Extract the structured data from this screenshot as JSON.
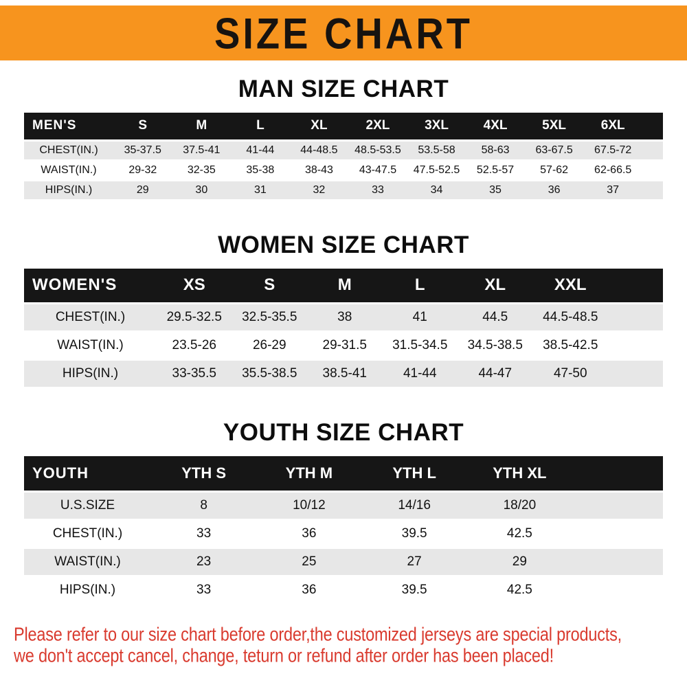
{
  "banner": {
    "title": "SIZE CHART"
  },
  "colors": {
    "banner_bg": "#f7941e",
    "table_header_bg": "#161616",
    "row_alt_bg": "#e7e7e7",
    "footer_text": "#d93a2e"
  },
  "sections": [
    {
      "id": "men",
      "heading": "MAN SIZE CHART",
      "header_label": "MEN'S",
      "columns": [
        "S",
        "M",
        "L",
        "XL",
        "2XL",
        "3XL",
        "4XL",
        "5XL",
        "6XL"
      ],
      "rows": [
        {
          "label": "CHEST(IN.)",
          "values": [
            "35-37.5",
            "37.5-41",
            "41-44",
            "44-48.5",
            "48.5-53.5",
            "53.5-58",
            "58-63",
            "63-67.5",
            "67.5-72"
          ]
        },
        {
          "label": "WAIST(IN.)",
          "values": [
            "29-32",
            "32-35",
            "35-38",
            "38-43",
            "43-47.5",
            "47.5-52.5",
            "52.5-57",
            "57-62",
            "62-66.5"
          ]
        },
        {
          "label": "HIPS(IN.)",
          "values": [
            "29",
            "30",
            "31",
            "32",
            "33",
            "34",
            "35",
            "36",
            "37"
          ]
        }
      ]
    },
    {
      "id": "women",
      "heading": "WOMEN SIZE CHART",
      "header_label": "WOMEN'S",
      "columns": [
        "XS",
        "S",
        "M",
        "L",
        "XL",
        "XXL"
      ],
      "rows": [
        {
          "label": "CHEST(IN.)",
          "values": [
            "29.5-32.5",
            "32.5-35.5",
            "38",
            "41",
            "44.5",
            "44.5-48.5"
          ]
        },
        {
          "label": "WAIST(IN.)",
          "values": [
            "23.5-26",
            "26-29",
            "29-31.5",
            "31.5-34.5",
            "34.5-38.5",
            "38.5-42.5"
          ]
        },
        {
          "label": "HIPS(IN.)",
          "values": [
            "33-35.5",
            "35.5-38.5",
            "38.5-41",
            "41-44",
            "44-47",
            "47-50"
          ]
        }
      ]
    },
    {
      "id": "youth",
      "heading": "YOUTH SIZE CHART",
      "header_label": "YOUTH",
      "columns": [
        "YTH S",
        "YTH M",
        "YTH L",
        "YTH XL"
      ],
      "rows": [
        {
          "label": "U.S.SIZE",
          "values": [
            "8",
            "10/12",
            "14/16",
            "18/20"
          ]
        },
        {
          "label": "CHEST(IN.)",
          "values": [
            "33",
            "36",
            "39.5",
            "42.5"
          ]
        },
        {
          "label": "WAIST(IN.)",
          "values": [
            "23",
            "25",
            "27",
            "29"
          ]
        },
        {
          "label": "HIPS(IN.)",
          "values": [
            "33",
            "36",
            "39.5",
            "42.5"
          ]
        }
      ]
    }
  ],
  "footer": {
    "line1": "Please refer to our size chart before order,the customized jerseys are special products,",
    "line2": "we don't accept cancel, change, teturn or refund after order has been placed!"
  }
}
